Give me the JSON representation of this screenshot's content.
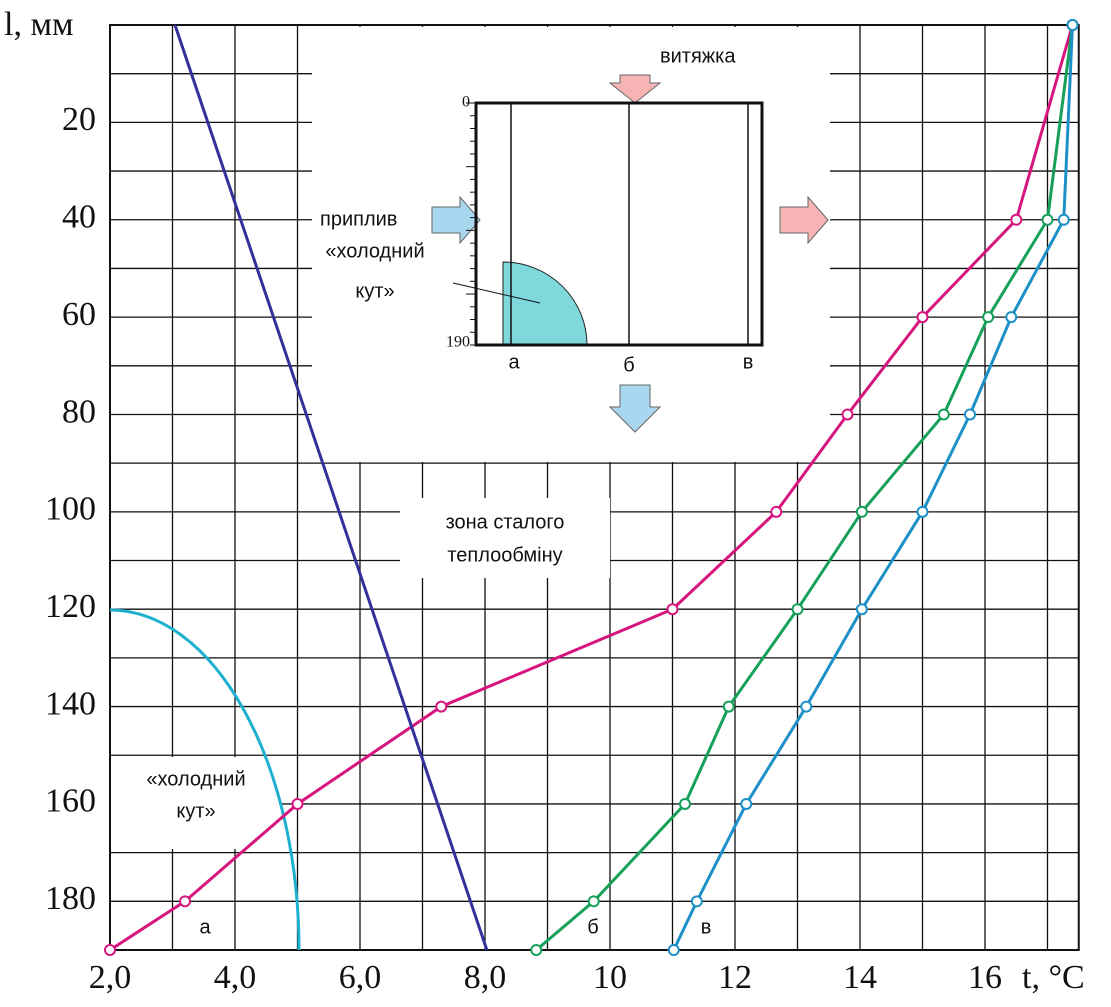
{
  "chart_data": {
    "type": "line",
    "y_label": "l, мм",
    "x_label": "t, °C",
    "xlim": [
      2,
      17.5
    ],
    "ylim": [
      0,
      190
    ],
    "xticks": [
      {
        "value": 2,
        "label": "2,0"
      },
      {
        "value": 4,
        "label": "4,0"
      },
      {
        "value": 6,
        "label": "6,0"
      },
      {
        "value": 8,
        "label": "8,0"
      },
      10,
      12,
      14,
      16
    ],
    "xminor": [
      3,
      5,
      7,
      9,
      11,
      13,
      15,
      17
    ],
    "yticks": [
      20,
      40,
      60,
      80,
      100,
      120,
      140,
      160,
      180
    ],
    "yminor": [
      10,
      30,
      50,
      70,
      90,
      110,
      130,
      150,
      170
    ],
    "grid": true,
    "y_inverted": true,
    "series": [
      {
        "name": "а",
        "color": "#d6157f",
        "markers": true,
        "y": [
          0,
          40,
          60,
          80,
          100,
          120,
          140,
          160,
          180,
          190
        ],
        "x": [
          17.4,
          16.5,
          15.0,
          13.8,
          12.66,
          11.0,
          7.3,
          5.0,
          3.2,
          2.0
        ]
      },
      {
        "name": "б",
        "color": "#17a05a",
        "markers": true,
        "y": [
          0,
          40,
          60,
          80,
          100,
          120,
          140,
          160,
          180,
          190
        ],
        "x": [
          17.4,
          17.0,
          16.05,
          15.34,
          14.03,
          13.0,
          11.9,
          11.2,
          9.74,
          8.82
        ]
      },
      {
        "name": "в",
        "color": "#1e90c8",
        "markers": true,
        "y": [
          0,
          40,
          60,
          80,
          100,
          120,
          140,
          160,
          180,
          190
        ],
        "x": [
          17.4,
          17.26,
          16.42,
          15.76,
          15.0,
          14.03,
          13.14,
          12.18,
          11.39,
          11.02
        ]
      },
      {
        "color": "#34309a",
        "markers": false,
        "y": [
          0,
          190
        ],
        "x": [
          3.04,
          8.03
        ]
      }
    ],
    "annotations": {
      "cold_corner": [
        "«холодний",
        "кут»"
      ],
      "zone": [
        "зона сталого",
        "теплообміну"
      ]
    },
    "inset": {
      "exhaust": "витяжка",
      "inflow": "приплив",
      "cold_corner": [
        "«холодний",
        "кут»"
      ],
      "top": "0",
      "bottom": "190",
      "positions": [
        "а",
        "б",
        "в"
      ]
    }
  }
}
